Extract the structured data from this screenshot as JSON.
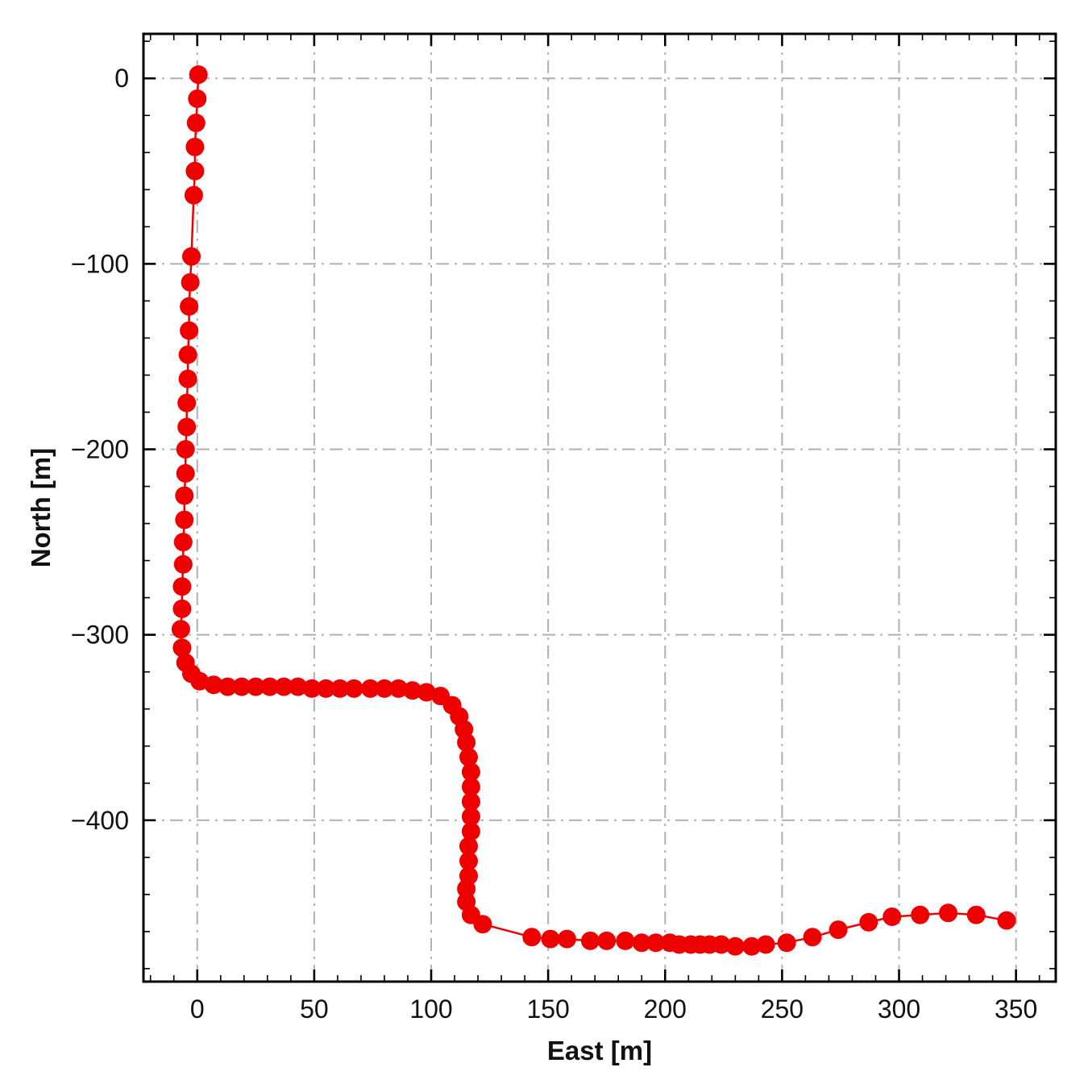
{
  "chart_data": {
    "type": "line",
    "title": "",
    "xlabel": "East [m]",
    "ylabel": "North [m]",
    "xlim": [
      -23,
      367
    ],
    "ylim": [
      -487,
      24
    ],
    "x_ticks": [
      0,
      50,
      100,
      150,
      200,
      250,
      300,
      350
    ],
    "x_tick_labels": [
      "0",
      "50",
      "100",
      "150",
      "200",
      "250",
      "300",
      "350"
    ],
    "y_ticks": [
      0,
      -100,
      -200,
      -300,
      -400
    ],
    "y_tick_labels": [
      "0",
      "−100",
      "−200",
      "−300",
      "−400"
    ],
    "x_minor_step": 10,
    "y_minor_step": 20,
    "grid": true,
    "grid_style": "dash-dot",
    "grid_color": "#b0b0b0",
    "frame_color": "#000000",
    "legend": "none",
    "series": [
      {
        "name": "trajectory",
        "color": "#ee0000",
        "marker": "circle",
        "marker_radius": 11.5,
        "line_width": 2.5,
        "points": [
          [
            0.5,
            2
          ],
          [
            0,
            -11
          ],
          [
            -0.5,
            -24
          ],
          [
            -1,
            -37
          ],
          [
            -1,
            -50
          ],
          [
            -1.5,
            -63
          ],
          [
            -2.5,
            -96
          ],
          [
            -3,
            -110
          ],
          [
            -3.5,
            -123
          ],
          [
            -3.5,
            -136
          ],
          [
            -4,
            -149
          ],
          [
            -4,
            -162
          ],
          [
            -4.5,
            -175
          ],
          [
            -4.5,
            -188
          ],
          [
            -5,
            -200
          ],
          [
            -5,
            -213
          ],
          [
            -5.5,
            -225
          ],
          [
            -5.5,
            -238
          ],
          [
            -6,
            -250
          ],
          [
            -6,
            -262
          ],
          [
            -6.5,
            -274
          ],
          [
            -6.5,
            -286
          ],
          [
            -7,
            -297
          ],
          [
            -6.5,
            -307
          ],
          [
            -5,
            -315
          ],
          [
            -2.5,
            -321
          ],
          [
            1,
            -325
          ],
          [
            7,
            -327
          ],
          [
            13,
            -328
          ],
          [
            19,
            -328
          ],
          [
            25,
            -328
          ],
          [
            31,
            -328
          ],
          [
            37,
            -328
          ],
          [
            43,
            -328
          ],
          [
            49,
            -329
          ],
          [
            55,
            -329
          ],
          [
            61,
            -329
          ],
          [
            67,
            -329
          ],
          [
            74,
            -329
          ],
          [
            80,
            -329
          ],
          [
            86,
            -329
          ],
          [
            92,
            -330
          ],
          [
            98,
            -331
          ],
          [
            104,
            -333
          ],
          [
            109,
            -338
          ],
          [
            112,
            -344
          ],
          [
            114,
            -351
          ],
          [
            115,
            -358
          ],
          [
            116,
            -366
          ],
          [
            117,
            -374
          ],
          [
            117,
            -382
          ],
          [
            117,
            -390
          ],
          [
            117,
            -398
          ],
          [
            117,
            -406
          ],
          [
            116,
            -414
          ],
          [
            116,
            -422
          ],
          [
            116,
            -430
          ],
          [
            115,
            -437
          ],
          [
            115,
            -444
          ],
          [
            117,
            -451
          ],
          [
            122,
            -456
          ],
          [
            143,
            -463
          ],
          [
            151,
            -464
          ],
          [
            158,
            -464
          ],
          [
            168,
            -465
          ],
          [
            175,
            -465
          ],
          [
            183,
            -465
          ],
          [
            190,
            -466
          ],
          [
            196,
            -466
          ],
          [
            202,
            -466
          ],
          [
            206,
            -467
          ],
          [
            211,
            -467
          ],
          [
            215,
            -467
          ],
          [
            219,
            -467
          ],
          [
            224,
            -467
          ],
          [
            230,
            -468
          ],
          [
            237,
            -468
          ],
          [
            243,
            -467
          ],
          [
            252,
            -466
          ],
          [
            263,
            -463
          ],
          [
            274,
            -459
          ],
          [
            287,
            -455
          ],
          [
            297,
            -452
          ],
          [
            309,
            -451
          ],
          [
            321,
            -450
          ],
          [
            333,
            -451
          ],
          [
            346,
            -454
          ]
        ]
      }
    ]
  }
}
